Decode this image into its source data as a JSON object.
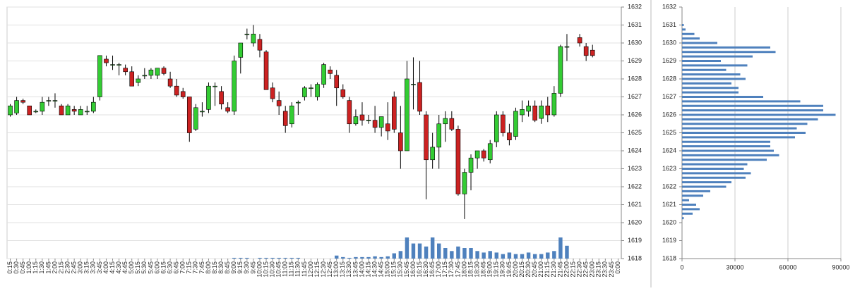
{
  "chart_data": [
    {
      "type": "candlestick",
      "categories": [
        "0:15",
        "0:30",
        "0:45",
        "1:00",
        "1:15",
        "1:30",
        "1:45",
        "2:00",
        "2:15",
        "2:30",
        "2:45",
        "3:00",
        "3:15",
        "3:30",
        "3:45",
        "4:00",
        "4:15",
        "4:30",
        "4:45",
        "5:00",
        "5:15",
        "5:30",
        "5:45",
        "6:00",
        "6:15",
        "6:30",
        "6:45",
        "7:00",
        "7:15",
        "7:30",
        "7:45",
        "8:00",
        "8:15",
        "8:30",
        "8:45",
        "9:00",
        "9:15",
        "9:30",
        "9:45",
        "10:00",
        "10:15",
        "10:30",
        "10:45",
        "11:00",
        "11:15",
        "11:30",
        "11:45",
        "12:00",
        "12:15",
        "12:30",
        "12:45",
        "13:00",
        "13:15",
        "13:30",
        "13:45",
        "14:00",
        "14:15",
        "14:30",
        "14:45",
        "15:00",
        "15:15",
        "15:30",
        "15:45",
        "16:00",
        "16:15",
        "16:30",
        "16:45",
        "17:00",
        "17:15",
        "17:30",
        "17:45",
        "18:00",
        "18:15",
        "18:30",
        "18:45",
        "19:00",
        "19:15",
        "19:30",
        "19:45",
        "20:00",
        "20:15",
        "20:30",
        "20:45",
        "21:00",
        "21:15",
        "21:30",
        "21:45",
        "22:00",
        "22:15",
        "22:30",
        "22:45",
        "23:00",
        "23:15",
        "23:30",
        "23:45",
        "0:00"
      ],
      "open": [
        1626.0,
        1626.1,
        1626.8,
        1626.5,
        1626.2,
        1626.2,
        1626.8,
        1626.8,
        1626.5,
        1626.0,
        1626.3,
        1626.0,
        1626.2,
        1626.2,
        1627.0,
        1629.1,
        1628.8,
        1628.8,
        1628.6,
        1628.4,
        1627.8,
        1628.2,
        1628.2,
        1628.2,
        1628.6,
        1628.0,
        1627.6,
        1627.3,
        1627.0,
        1625.2,
        1626.2,
        1626.3,
        1627.6,
        1627.3,
        1626.4,
        1626.2,
        1629.2,
        1630.5,
        1630.0,
        1630.2,
        1629.5,
        1627.5,
        1626.8,
        1626.2,
        1625.5,
        1626.7,
        1627.0,
        1627.5,
        1627.0,
        1627.7,
        1628.5,
        1628.2,
        1627.4,
        1626.8,
        1625.5,
        1626.0,
        1625.7,
        1625.7,
        1625.3,
        1625.5,
        1627.0,
        1625.0,
        1624.0,
        1627.7,
        1627.8,
        1626.0,
        1623.5,
        1624.2,
        1625.5,
        1625.8,
        1625.2,
        1621.6,
        1622.8,
        1623.6,
        1624.0,
        1623.5,
        1624.5,
        1626.0,
        1625.0,
        1624.8,
        1626.0,
        1626.2,
        1626.5,
        1625.8,
        1626.5,
        1626.0,
        1627.2,
        1629.8,
        null,
        1630.3,
        1629.8,
        1629.6,
        null,
        null,
        null,
        null
      ],
      "high": [
        1626.6,
        1627.0,
        1626.9,
        1626.5,
        1626.3,
        1627.0,
        1627.0,
        1627.2,
        1626.6,
        1626.6,
        1626.5,
        1626.5,
        1626.5,
        1627.0,
        1629.3,
        1629.3,
        1629.3,
        1628.9,
        1628.8,
        1628.7,
        1628.2,
        1628.6,
        1628.6,
        1628.6,
        1628.7,
        1628.4,
        1628.0,
        1627.5,
        1627.0,
        1626.6,
        1626.7,
        1627.8,
        1627.8,
        1627.6,
        1626.7,
        1629.3,
        1630.0,
        1630.8,
        1631.0,
        1630.5,
        1629.6,
        1627.8,
        1627.3,
        1626.5,
        1626.7,
        1626.8,
        1627.6,
        1627.7,
        1627.8,
        1628.9,
        1628.7,
        1628.5,
        1627.7,
        1627.0,
        1626.3,
        1626.7,
        1626.0,
        1626.5,
        1625.9,
        1626.7,
        1627.3,
        1626.5,
        1629.0,
        1629.2,
        1629.0,
        1626.2,
        1625.0,
        1626.0,
        1626.2,
        1626.2,
        1625.4,
        1623.0,
        1623.8,
        1624.0,
        1624.1,
        1624.6,
        1626.2,
        1626.2,
        1625.5,
        1626.4,
        1626.8,
        1626.8,
        1626.8,
        1626.8,
        1627.0,
        1627.6,
        1629.9,
        1630.5,
        null,
        1630.5,
        1630.0,
        1629.9,
        null,
        null,
        null,
        null
      ],
      "low": [
        1625.9,
        1626.0,
        1626.6,
        1626.0,
        1626.1,
        1626.0,
        1626.5,
        1626.4,
        1626.0,
        1626.0,
        1626.0,
        1626.0,
        1626.0,
        1626.1,
        1626.8,
        1628.7,
        1628.5,
        1628.2,
        1628.2,
        1627.6,
        1627.6,
        1628.0,
        1628.0,
        1628.0,
        1628.2,
        1627.5,
        1627.0,
        1626.9,
        1624.5,
        1625.1,
        1625.9,
        1626.1,
        1626.5,
        1626.3,
        1626.1,
        1626.0,
        1628.3,
        1630.2,
        1629.8,
        1629.2,
        1627.4,
        1626.7,
        1626.0,
        1625.0,
        1625.3,
        1626.0,
        1626.8,
        1627.0,
        1626.8,
        1627.5,
        1628.0,
        1626.5,
        1626.9,
        1625.0,
        1625.4,
        1625.4,
        1625.5,
        1625.0,
        1624.8,
        1624.6,
        1625.0,
        1623.0,
        1624.0,
        1626.3,
        1626.0,
        1621.3,
        1623.0,
        1623.0,
        1624.5,
        1625.1,
        1621.5,
        1620.2,
        1621.8,
        1623.0,
        1623.4,
        1623.3,
        1624.2,
        1624.8,
        1624.3,
        1624.6,
        1625.6,
        1625.9,
        1625.6,
        1625.5,
        1625.6,
        1625.9,
        1627.0,
        1629.0,
        null,
        1629.8,
        1629.0,
        1629.2,
        null,
        null,
        null,
        null
      ],
      "close": [
        1626.5,
        1626.8,
        1626.7,
        1626.0,
        1626.2,
        1626.7,
        1626.8,
        1626.8,
        1626.0,
        1626.5,
        1626.2,
        1626.3,
        1626.2,
        1626.7,
        1629.3,
        1628.9,
        1628.8,
        1628.8,
        1628.4,
        1627.6,
        1628.0,
        1628.2,
        1628.5,
        1628.6,
        1628.3,
        1627.6,
        1627.1,
        1627.0,
        1625.0,
        1626.4,
        1626.2,
        1627.6,
        1627.6,
        1626.6,
        1626.2,
        1629.0,
        1630.0,
        1630.5,
        1630.5,
        1629.6,
        1627.4,
        1626.9,
        1626.5,
        1625.4,
        1626.5,
        1626.7,
        1627.5,
        1627.5,
        1627.7,
        1628.8,
        1628.3,
        1627.5,
        1627.0,
        1625.5,
        1625.9,
        1625.7,
        1625.7,
        1625.3,
        1625.9,
        1625.1,
        1625.2,
        1624.0,
        1628.0,
        1627.7,
        1626.2,
        1623.5,
        1624.2,
        1625.5,
        1625.8,
        1625.2,
        1621.6,
        1622.8,
        1623.6,
        1624.0,
        1623.6,
        1624.4,
        1626.0,
        1625.0,
        1624.6,
        1626.2,
        1626.3,
        1626.5,
        1625.7,
        1626.5,
        1626.0,
        1627.2,
        1629.8,
        1629.8,
        null,
        1630.0,
        1629.3,
        1629.3,
        null,
        null,
        null,
        null
      ],
      "volume": [
        0,
        0,
        0,
        0,
        0,
        0,
        0,
        0,
        0,
        0,
        0,
        0,
        0,
        0,
        0,
        0,
        0,
        0,
        0,
        0,
        0,
        0,
        0,
        0,
        0,
        0,
        0,
        0,
        0,
        0,
        0,
        0,
        0,
        0,
        0,
        1,
        1,
        1,
        0,
        1,
        1,
        1,
        1,
        1,
        1,
        1,
        0,
        0,
        0,
        0,
        0,
        4,
        2,
        1,
        2,
        2,
        2,
        3,
        2,
        3,
        7,
        10,
        28,
        20,
        20,
        16,
        28,
        20,
        14,
        10,
        16,
        14,
        14,
        10,
        8,
        10,
        8,
        6,
        8,
        6,
        6,
        8,
        6,
        6,
        8,
        10,
        28,
        17,
        null,
        0,
        0,
        0,
        null,
        null,
        null,
        null
      ],
      "ylim": [
        1618,
        1632
      ],
      "yticks": [
        1618,
        1619,
        1620,
        1621,
        1622,
        1623,
        1624,
        1625,
        1626,
        1627,
        1628,
        1629,
        1630,
        1631,
        1632
      ],
      "up_color": "#33cc33",
      "down_color": "#cc2222",
      "volume_color": "#4f81bd"
    },
    {
      "type": "barh",
      "y": [
        1631.0,
        1630.75,
        1630.5,
        1630.25,
        1630.0,
        1629.75,
        1629.5,
        1629.25,
        1629.0,
        1628.75,
        1628.5,
        1628.25,
        1628.0,
        1627.75,
        1627.5,
        1627.25,
        1627.0,
        1626.75,
        1626.5,
        1626.25,
        1626.0,
        1625.75,
        1625.5,
        1625.25,
        1625.0,
        1624.75,
        1624.5,
        1624.25,
        1624.0,
        1623.75,
        1623.5,
        1623.25,
        1623.0,
        1622.75,
        1622.5,
        1622.25,
        1622.0,
        1621.75,
        1621.5,
        1621.25,
        1621.0,
        1620.75,
        1620.5,
        1620.25
      ],
      "values": [
        1000,
        2000,
        7000,
        10000,
        20000,
        50000,
        53000,
        40000,
        22000,
        37000,
        25000,
        33000,
        36000,
        28000,
        32000,
        32000,
        46000,
        67000,
        80000,
        80000,
        87000,
        77000,
        71000,
        65000,
        70000,
        64000,
        50000,
        50000,
        52000,
        55000,
        48000,
        37000,
        35000,
        39000,
        36000,
        28000,
        25000,
        16000,
        12000,
        4000,
        8000,
        10000,
        6000,
        1000
      ],
      "ylim": [
        1618,
        1632
      ],
      "yticks": [
        1618,
        1619,
        1620,
        1621,
        1622,
        1623,
        1624,
        1625,
        1626,
        1627,
        1628,
        1629,
        1630,
        1631,
        1632
      ],
      "xlim": [
        0,
        90000
      ],
      "xticks": [
        0,
        30000,
        60000,
        90000
      ],
      "grid": true,
      "color": "#4f81bd"
    }
  ]
}
